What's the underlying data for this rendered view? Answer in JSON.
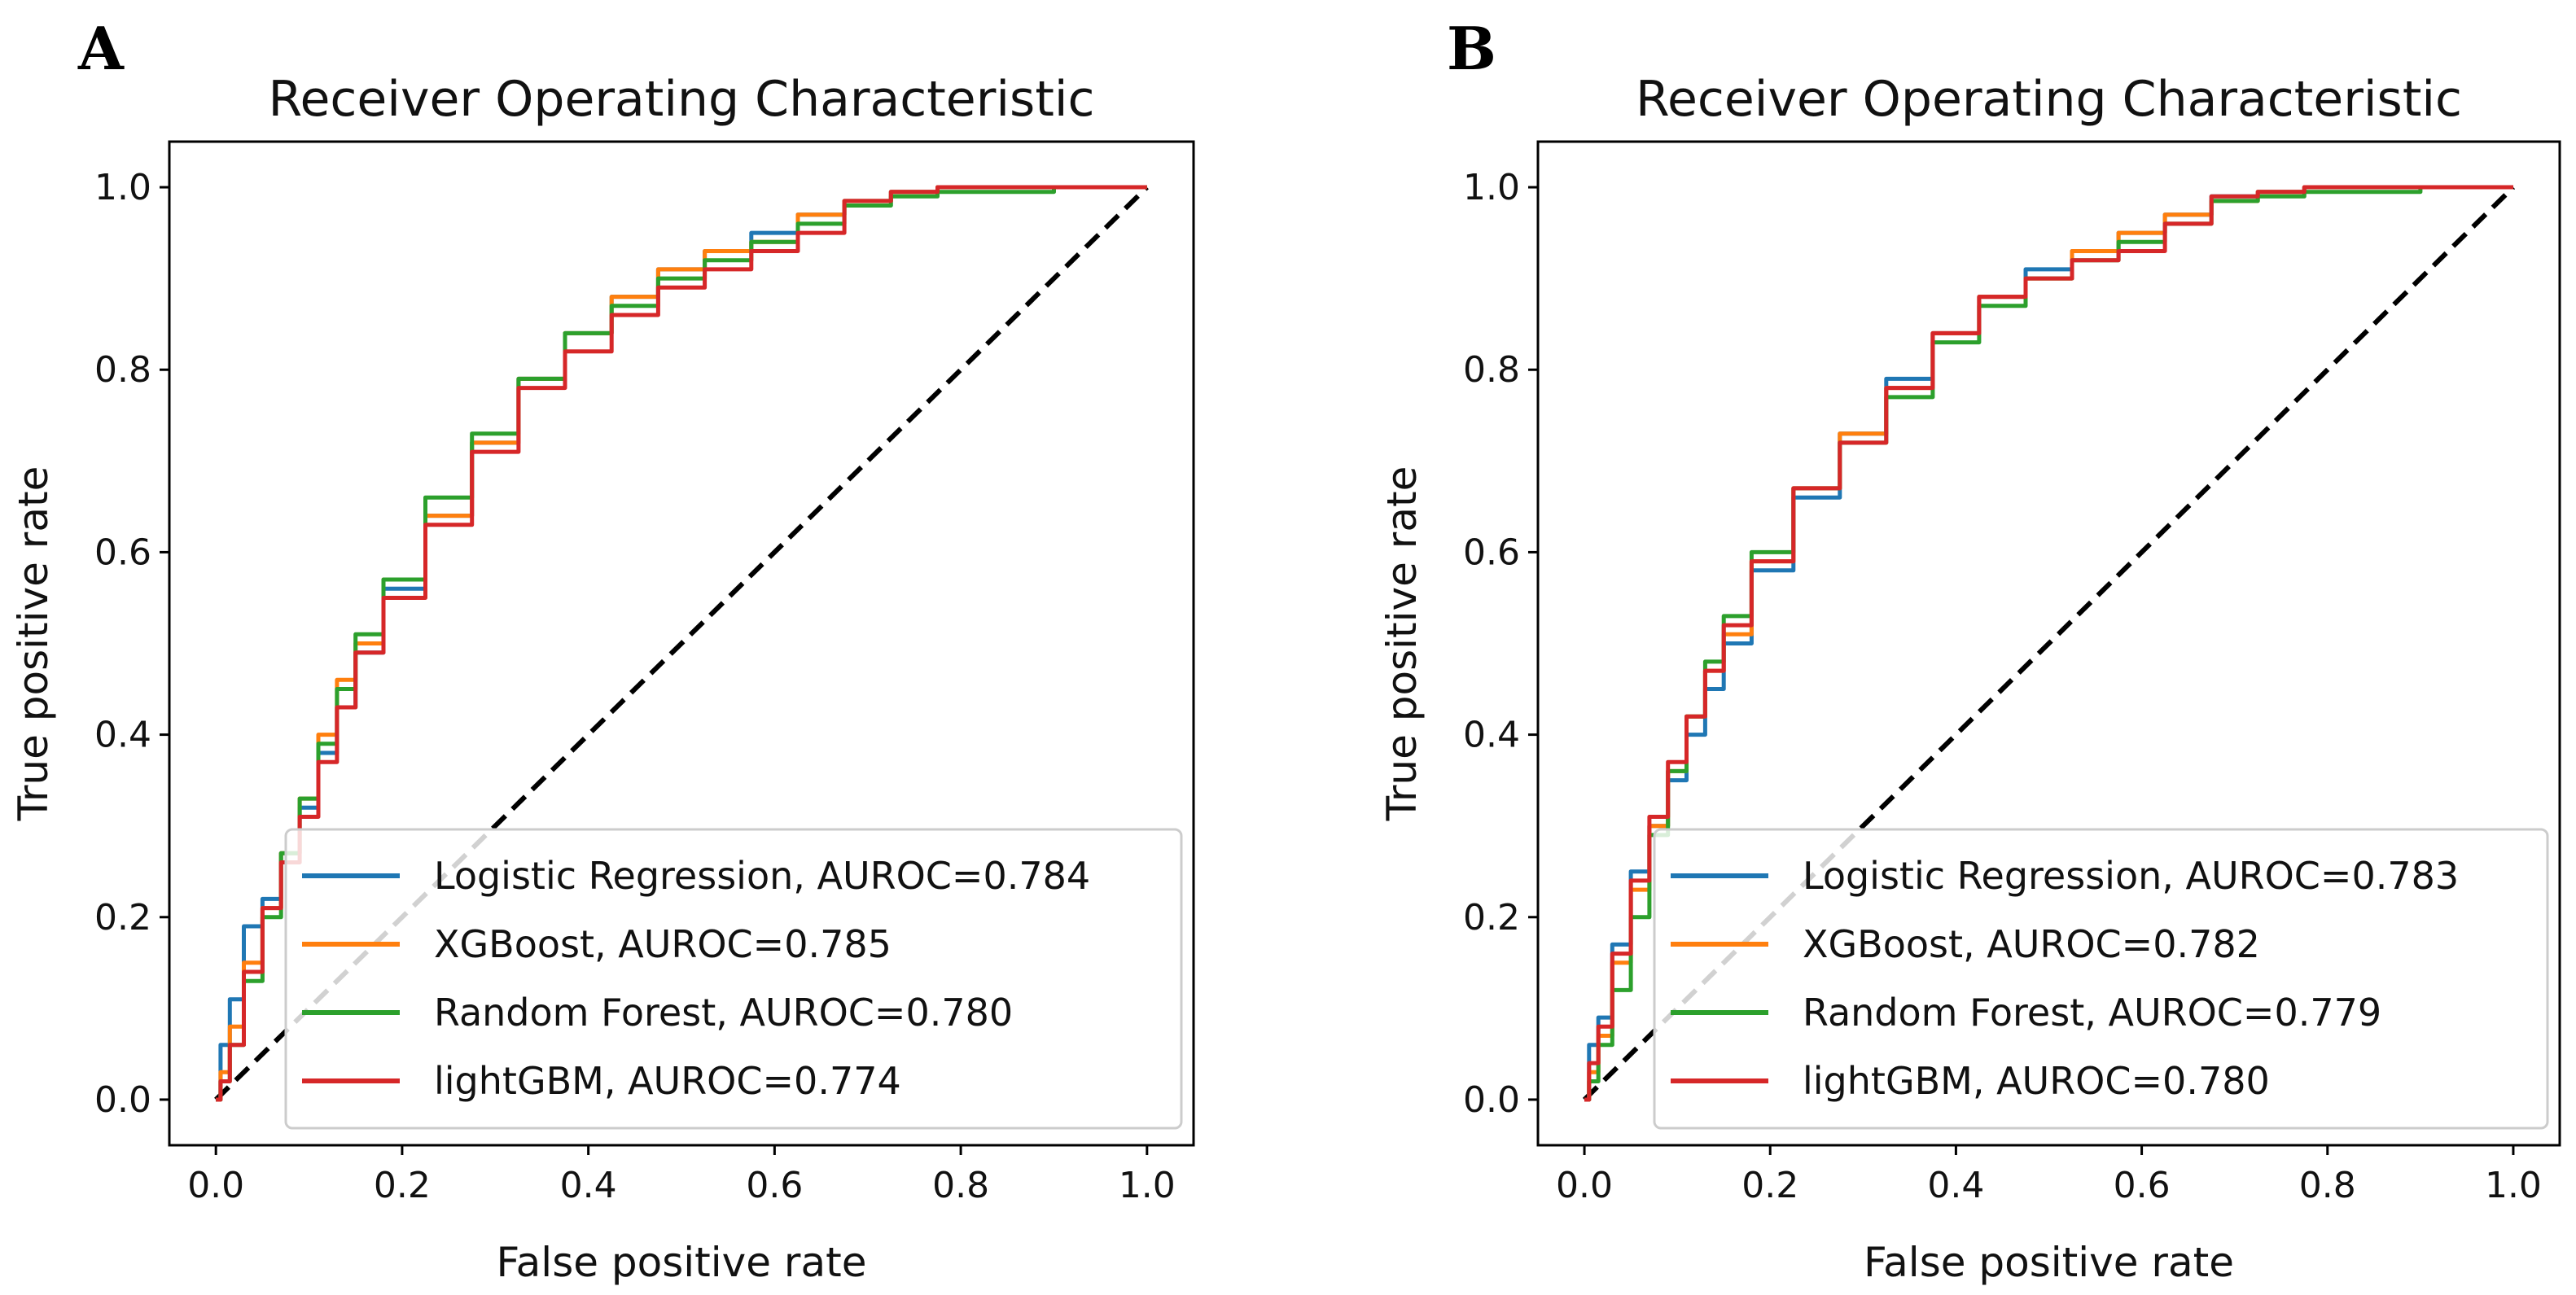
{
  "chart_data": [
    {
      "panel": "A",
      "type": "line",
      "title": "Receiver Operating Characteristic",
      "xlabel": "False positive rate",
      "ylabel": "True positive rate",
      "xlim": [
        -0.05,
        1.05
      ],
      "ylim": [
        -0.05,
        1.05
      ],
      "xticks": [
        "0.0",
        "0.2",
        "0.4",
        "0.6",
        "0.8",
        "1.0"
      ],
      "yticks": [
        "0.0",
        "0.2",
        "0.4",
        "0.6",
        "0.8",
        "1.0"
      ],
      "legend_position": "lower-right",
      "diagonal": {
        "x": [
          0,
          1
        ],
        "y": [
          0,
          1
        ],
        "style": "dashed",
        "color": "#000000"
      },
      "series": [
        {
          "name": "Logistic Regression, AUROC=0.784",
          "color": "#1f77b4",
          "x": [
            0,
            0.01,
            0.02,
            0.04,
            0.06,
            0.08,
            0.1,
            0.12,
            0.14,
            0.16,
            0.2,
            0.25,
            0.3,
            0.35,
            0.4,
            0.45,
            0.5,
            0.55,
            0.6,
            0.65,
            0.7,
            0.75,
            0.8,
            1.0
          ],
          "y": [
            0,
            0.06,
            0.11,
            0.19,
            0.22,
            0.27,
            0.32,
            0.38,
            0.43,
            0.49,
            0.56,
            0.64,
            0.72,
            0.79,
            0.84,
            0.88,
            0.91,
            0.93,
            0.95,
            0.97,
            0.985,
            0.995,
            1.0,
            1.0
          ]
        },
        {
          "name": "XGBoost, AUROC=0.785",
          "color": "#ff7f0e",
          "x": [
            0,
            0.01,
            0.02,
            0.04,
            0.06,
            0.08,
            0.1,
            0.12,
            0.14,
            0.16,
            0.2,
            0.25,
            0.3,
            0.35,
            0.4,
            0.45,
            0.5,
            0.55,
            0.6,
            0.65,
            0.7,
            0.75,
            0.8,
            1.0
          ],
          "y": [
            0,
            0.03,
            0.08,
            0.15,
            0.21,
            0.27,
            0.33,
            0.4,
            0.46,
            0.5,
            0.57,
            0.64,
            0.72,
            0.79,
            0.84,
            0.88,
            0.91,
            0.93,
            0.94,
            0.97,
            0.985,
            0.995,
            1.0,
            1.0
          ]
        },
        {
          "name": "Random Forest, AUROC=0.780",
          "color": "#2ca02c",
          "x": [
            0,
            0.01,
            0.02,
            0.04,
            0.06,
            0.08,
            0.1,
            0.12,
            0.14,
            0.16,
            0.2,
            0.25,
            0.3,
            0.35,
            0.4,
            0.45,
            0.5,
            0.55,
            0.6,
            0.65,
            0.7,
            0.75,
            0.8,
            1.0
          ],
          "y": [
            0,
            0.02,
            0.06,
            0.13,
            0.2,
            0.27,
            0.33,
            0.39,
            0.45,
            0.51,
            0.57,
            0.66,
            0.73,
            0.79,
            0.84,
            0.87,
            0.9,
            0.92,
            0.94,
            0.96,
            0.98,
            0.99,
            0.995,
            1.0
          ]
        },
        {
          "name": "lightGBM, AUROC=0.774",
          "color": "#d62728",
          "x": [
            0,
            0.01,
            0.02,
            0.04,
            0.06,
            0.08,
            0.1,
            0.12,
            0.14,
            0.16,
            0.2,
            0.25,
            0.3,
            0.35,
            0.4,
            0.45,
            0.5,
            0.55,
            0.6,
            0.65,
            0.7,
            0.75,
            0.8,
            1.0
          ],
          "y": [
            0,
            0.02,
            0.06,
            0.14,
            0.21,
            0.26,
            0.31,
            0.37,
            0.43,
            0.49,
            0.55,
            0.63,
            0.71,
            0.78,
            0.82,
            0.86,
            0.89,
            0.91,
            0.93,
            0.95,
            0.985,
            0.995,
            1.0,
            1.0
          ]
        }
      ]
    },
    {
      "panel": "B",
      "type": "line",
      "title": "Receiver Operating Characteristic",
      "xlabel": "False positive rate",
      "ylabel": "True positive rate",
      "xlim": [
        -0.05,
        1.05
      ],
      "ylim": [
        -0.05,
        1.05
      ],
      "xticks": [
        "0.0",
        "0.2",
        "0.4",
        "0.6",
        "0.8",
        "1.0"
      ],
      "yticks": [
        "0.0",
        "0.2",
        "0.4",
        "0.6",
        "0.8",
        "1.0"
      ],
      "legend_position": "lower-right",
      "diagonal": {
        "x": [
          0,
          1
        ],
        "y": [
          0,
          1
        ],
        "style": "dashed",
        "color": "#000000"
      },
      "series": [
        {
          "name": "Logistic Regression, AUROC=0.783",
          "color": "#1f77b4",
          "x": [
            0,
            0.01,
            0.02,
            0.04,
            0.06,
            0.08,
            0.1,
            0.12,
            0.14,
            0.16,
            0.2,
            0.25,
            0.3,
            0.35,
            0.4,
            0.45,
            0.5,
            0.55,
            0.6,
            0.65,
            0.7,
            0.75,
            0.8,
            1.0
          ],
          "y": [
            0,
            0.06,
            0.09,
            0.17,
            0.25,
            0.3,
            0.35,
            0.4,
            0.45,
            0.5,
            0.58,
            0.66,
            0.73,
            0.79,
            0.84,
            0.88,
            0.91,
            0.93,
            0.95,
            0.97,
            0.99,
            0.995,
            1.0,
            1.0
          ]
        },
        {
          "name": "XGBoost, AUROC=0.782",
          "color": "#ff7f0e",
          "x": [
            0,
            0.01,
            0.02,
            0.04,
            0.06,
            0.08,
            0.1,
            0.12,
            0.14,
            0.16,
            0.2,
            0.25,
            0.3,
            0.35,
            0.4,
            0.45,
            0.5,
            0.55,
            0.6,
            0.65,
            0.7,
            0.75,
            0.8,
            1.0
          ],
          "y": [
            0,
            0.03,
            0.07,
            0.15,
            0.23,
            0.3,
            0.36,
            0.42,
            0.47,
            0.51,
            0.59,
            0.67,
            0.73,
            0.78,
            0.84,
            0.88,
            0.9,
            0.93,
            0.95,
            0.97,
            0.985,
            0.995,
            1.0,
            1.0
          ]
        },
        {
          "name": "Random Forest, AUROC=0.779",
          "color": "#2ca02c",
          "x": [
            0,
            0.01,
            0.02,
            0.04,
            0.06,
            0.08,
            0.1,
            0.12,
            0.14,
            0.16,
            0.2,
            0.25,
            0.3,
            0.35,
            0.4,
            0.45,
            0.5,
            0.55,
            0.6,
            0.65,
            0.7,
            0.75,
            0.8,
            1.0
          ],
          "y": [
            0,
            0.02,
            0.06,
            0.12,
            0.2,
            0.29,
            0.36,
            0.42,
            0.48,
            0.53,
            0.6,
            0.67,
            0.72,
            0.77,
            0.83,
            0.87,
            0.9,
            0.92,
            0.94,
            0.96,
            0.985,
            0.99,
            0.995,
            1.0
          ]
        },
        {
          "name": "lightGBM, AUROC=0.780",
          "color": "#d62728",
          "x": [
            0,
            0.01,
            0.02,
            0.04,
            0.06,
            0.08,
            0.1,
            0.12,
            0.14,
            0.16,
            0.2,
            0.25,
            0.3,
            0.35,
            0.4,
            0.45,
            0.5,
            0.55,
            0.6,
            0.65,
            0.7,
            0.75,
            0.8,
            1.0
          ],
          "y": [
            0,
            0.04,
            0.08,
            0.16,
            0.24,
            0.31,
            0.37,
            0.42,
            0.47,
            0.52,
            0.59,
            0.67,
            0.72,
            0.78,
            0.84,
            0.88,
            0.9,
            0.92,
            0.93,
            0.96,
            0.99,
            0.995,
            1.0,
            1.0
          ]
        }
      ]
    }
  ]
}
